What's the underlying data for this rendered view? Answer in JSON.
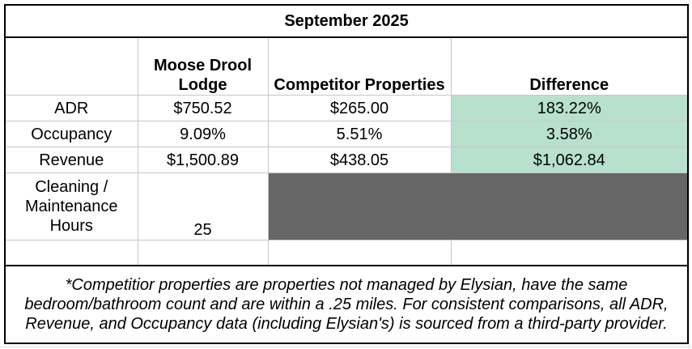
{
  "title": "September 2025",
  "columns": [
    "",
    "Moose Drool Lodge",
    "Competitor Properties",
    "Difference"
  ],
  "rows": [
    {
      "label": "ADR",
      "lodge": "$750.52",
      "competitor": "$265.00",
      "difference": "183.22%"
    },
    {
      "label": "Occupancy",
      "lodge": "9.09%",
      "competitor": "5.51%",
      "difference": "3.58%"
    },
    {
      "label": "Revenue",
      "lodge": "$1,500.89",
      "competitor": "$438.05",
      "difference": "$1,062.84"
    }
  ],
  "cleaning": {
    "label": "Cleaning / Maintenance Hours",
    "lodge": "25"
  },
  "footnote": "*Competitior properties are properties not managed by Elysian, have the same bedroom/bathroom count and are within a .25 miles. For consistent comparisons, all ADR, Revenue, and Occupancy data (including Elysian's) is sourced from a third-party provider.",
  "colors": {
    "difference_highlight": "#b7e1cd",
    "blocked_cell": "#666666",
    "gridline": "#c7c7c7"
  }
}
